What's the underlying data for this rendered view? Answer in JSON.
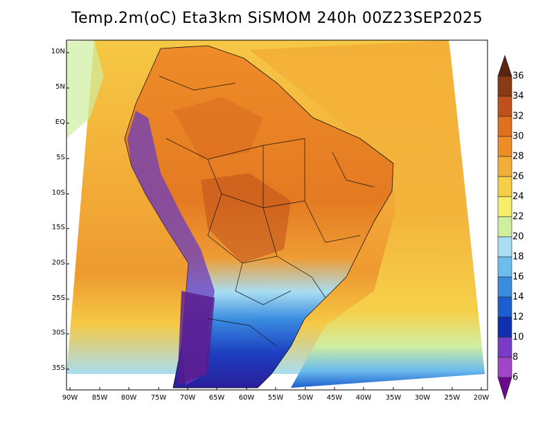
{
  "title": "Temp.2m(oC) Eta3km SiSMOM 240h 00Z23SEP2025",
  "lat_ticks": [
    "10N",
    "5N",
    "EQ",
    "5S",
    "10S",
    "15S",
    "20S",
    "25S",
    "30S",
    "35S"
  ],
  "lon_ticks": [
    "90W",
    "85W",
    "80W",
    "75W",
    "70W",
    "65W",
    "60W",
    "55W",
    "50W",
    "45W",
    "40W",
    "35W",
    "30W",
    "25W",
    "20W"
  ],
  "colorbar": {
    "labels": [
      "36",
      "34",
      "32",
      "30",
      "28",
      "26",
      "24",
      "22",
      "20",
      "18",
      "16",
      "14",
      "12",
      "10",
      "8",
      "6"
    ],
    "colors": [
      "#5a2410",
      "#8a3a14",
      "#c0501c",
      "#e0701e",
      "#ee8c28",
      "#f3ae3a",
      "#f6cf47",
      "#f6ee6b",
      "#cfeea0",
      "#a8ddf2",
      "#6cbcee",
      "#3a8ce0",
      "#1c5ed0",
      "#1030b0",
      "#2a1e9c",
      "#7a3cc8",
      "#a044c8",
      "#6a0a8c"
    ]
  }
}
